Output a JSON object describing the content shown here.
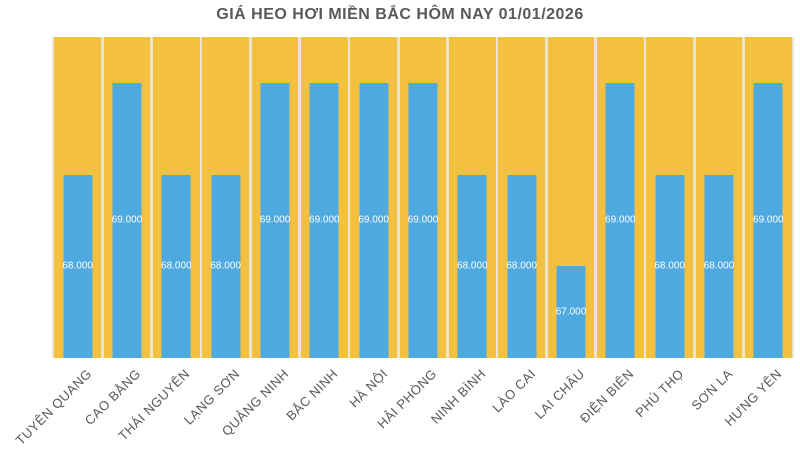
{
  "title": "GIÁ HEO HƠI MIỀN BẮC HÔM NAY 01/01/2026",
  "chart_data": {
    "type": "bar",
    "title": "GIÁ HEO HƠI MIỀN BẮC HÔM NAY 01/01/2026",
    "categories": [
      "TUYÊN QUANG",
      "CAO BẰNG",
      "THÁI NGUYÊN",
      "LẠNG SƠN",
      "QUẢNG NINH",
      "BẮC NINH",
      "HÀ NỘI",
      "HẢI PHÒNG",
      "NINH BÌNH",
      "LÀO CAI",
      "LAI CHÂU",
      "ĐIỆN BIÊN",
      "PHÚ THỌ",
      "SƠN LA",
      "HƯNG YÊN"
    ],
    "values": [
      68000,
      69000,
      68000,
      68000,
      69000,
      69000,
      69000,
      69000,
      68000,
      68000,
      67000,
      69000,
      68000,
      68000,
      69000
    ],
    "data_labels": [
      "68.000",
      "69.000",
      "68.000",
      "68.000",
      "69.000",
      "69.000",
      "69.000",
      "69.000",
      "68.000",
      "68.000",
      "67.000",
      "69.000",
      "68.000",
      "68.000",
      "69.000"
    ],
    "xlabel": "",
    "ylabel": "",
    "ylim": [
      66000,
      69500
    ],
    "legend": "none",
    "grid": "vertical-category-separators",
    "data_label_position": "center-inside-bar",
    "x_label_rotation_deg": -45,
    "colors": {
      "bar": "#4FA9E1",
      "plot_background": "#F3C13F",
      "separator_line": "#ECE5CE",
      "data_label": "#FFFFFF",
      "title_text": "#595959",
      "axis_text": "#595959",
      "page_background": "#FFFFFF"
    }
  }
}
